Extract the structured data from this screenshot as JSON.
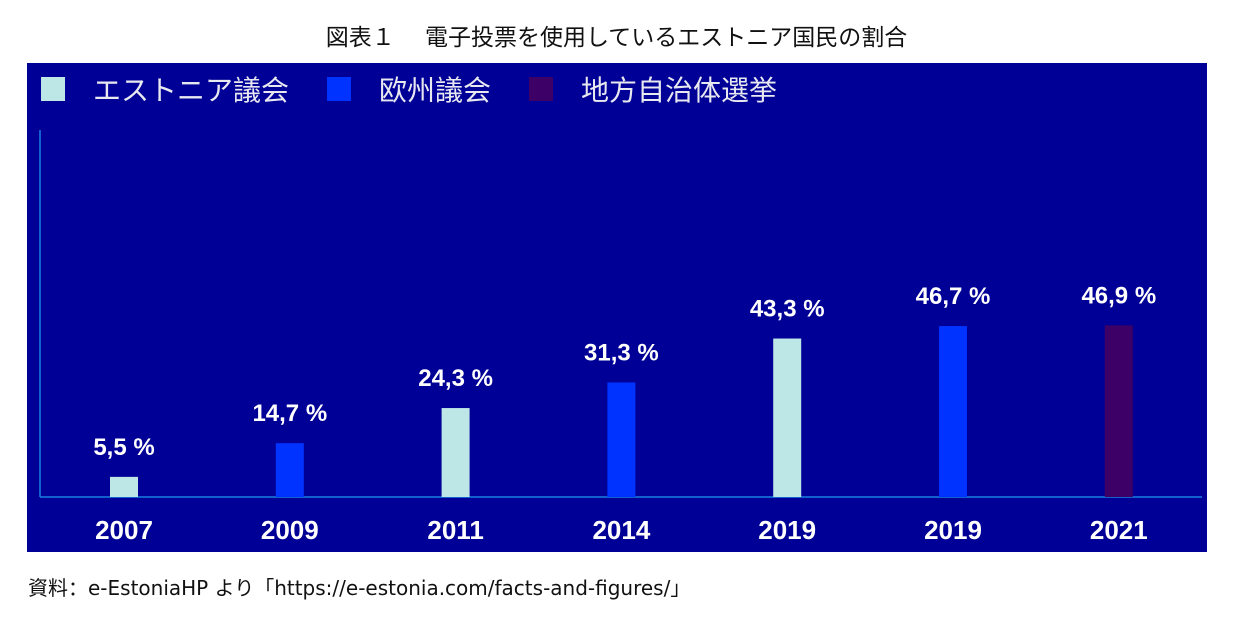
{
  "title": "図表１　 電子投票を使用しているエストニア国民の割合",
  "source": "資料：e-EstoniaHP より「https://e-estonia.com/facts-and-figures/」",
  "chart_data": {
    "type": "bar",
    "title": "図表１　 電子投票を使用しているエストニア国民の割合",
    "categories": [
      "2007",
      "2009",
      "2011",
      "2014",
      "2019",
      "2019",
      "2021"
    ],
    "values": [
      5.5,
      14.7,
      24.3,
      31.3,
      43.3,
      46.7,
      46.9
    ],
    "value_labels": [
      "5,5 %",
      "14,7 %",
      "24,3 %",
      "31,3 %",
      "43,3 %",
      "46,7 %",
      "46,9 %"
    ],
    "series_of_bar": [
      0,
      1,
      0,
      1,
      0,
      1,
      2
    ],
    "legend": [
      {
        "name": "エストニア議会",
        "color": "#bde6e6"
      },
      {
        "name": "欧州議会",
        "color": "#0033ff"
      },
      {
        "name": "地方自治体選挙",
        "color": "#3d0066"
      }
    ],
    "legend_position": "top-left",
    "ylim": [
      0,
      100
    ],
    "grid": false,
    "xlabel": "",
    "ylabel": ""
  }
}
